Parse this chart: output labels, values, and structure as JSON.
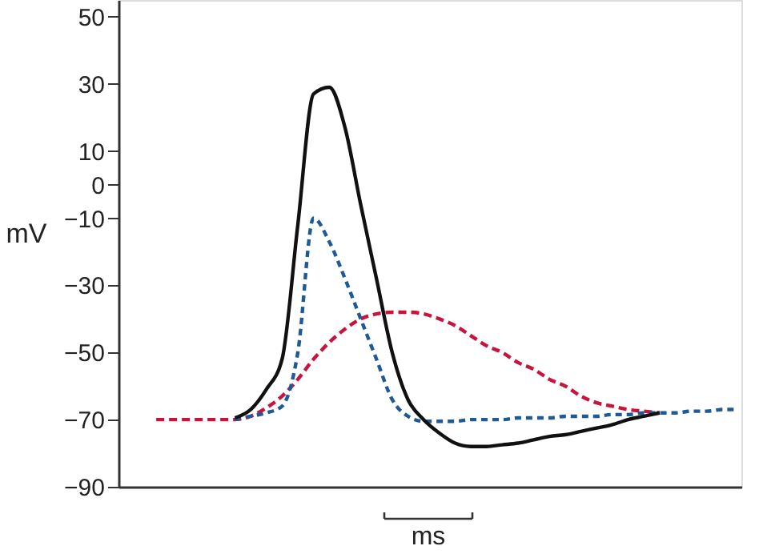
{
  "chart_data": {
    "type": "line",
    "ylabel": "mV",
    "ylim": [
      -90,
      55
    ],
    "yticks": [
      50,
      30,
      10,
      0,
      -10,
      -30,
      -50,
      -70,
      -90
    ],
    "grid": false,
    "tick_labels": "y",
    "annotations": [
      "ms"
    ],
    "categories": [
      null,
      null,
      null,
      null,
      null,
      null,
      null,
      null,
      null,
      null,
      null,
      null,
      null,
      null,
      null,
      null,
      null,
      null,
      null,
      null,
      null,
      null,
      null,
      null,
      null,
      null,
      null,
      null,
      null,
      null,
      null,
      null,
      null,
      null,
      null,
      null,
      null,
      null
    ],
    "series": [
      {
        "color": "#c8143c",
        "line_style": "dashed",
        "values": [
          -70,
          -70,
          -70,
          -70,
          -70,
          -70,
          -69,
          -66.5,
          -63,
          -58,
          -52,
          -47,
          -43,
          -40,
          -38.5,
          -38,
          -38,
          -38.5,
          -40,
          -42,
          -45,
          -48,
          -50,
          -53,
          -55,
          -58,
          -60,
          -63,
          -65,
          -66,
          -67,
          -67.5,
          -68,
          null,
          null,
          null,
          null,
          null
        ]
      },
      {
        "color": "#1f5a96",
        "line_style": "dotted",
        "values": [
          null,
          null,
          null,
          null,
          null,
          -70,
          -69,
          -68,
          -66,
          -50,
          -10,
          -17,
          -28,
          -40,
          -52,
          -64,
          -69,
          -70.5,
          -70.5,
          -70.5,
          -70,
          -70,
          -70,
          -69.5,
          -69.5,
          -69.5,
          -69,
          -69,
          -69,
          -68.5,
          -68.5,
          -68,
          -68,
          -68,
          -67.5,
          -67.5,
          -67,
          -67
        ]
      },
      {
        "color": "#111111",
        "line_style": "solid",
        "values": [
          null,
          null,
          null,
          null,
          null,
          -69.5,
          -67,
          -61,
          -52,
          -12,
          27,
          29,
          17,
          -6,
          -28,
          -50,
          -64,
          -70,
          -74,
          -77,
          -78,
          -78,
          -77.5,
          -77,
          -76,
          -75,
          -74.5,
          -73.5,
          -72.5,
          -71.5,
          -70,
          -69,
          -68,
          null,
          null,
          null,
          null,
          null
        ]
      }
    ]
  }
}
